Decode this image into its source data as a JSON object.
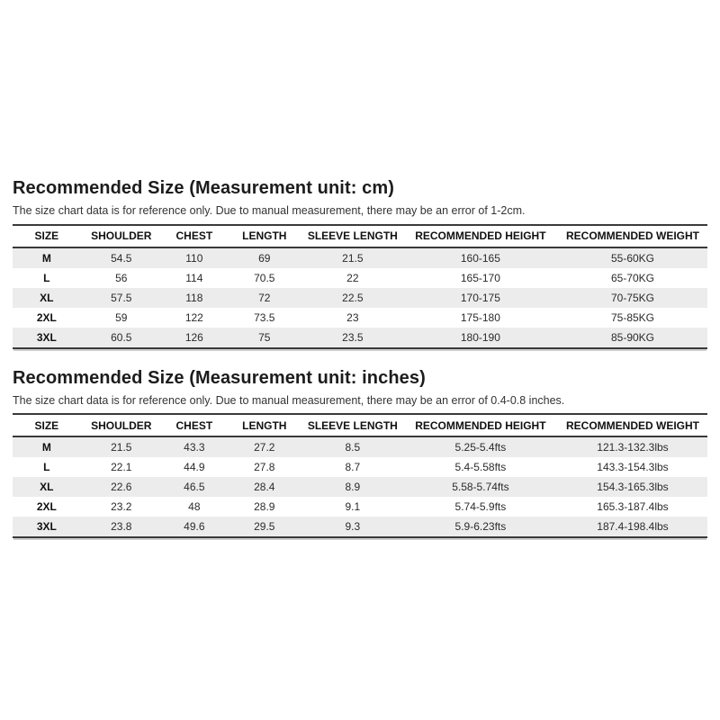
{
  "colors": {
    "background": "#ffffff",
    "stripe": "#ececec",
    "rule": "#3a3a3a",
    "text": "#222222"
  },
  "sections": [
    {
      "title": "Recommended Size (Measurement unit: cm)",
      "subtitle": "The size chart data is for reference only. Due to manual measurement, there may be an error of 1-2cm.",
      "table": {
        "headers": [
          "SIZE",
          "SHOULDER",
          "CHEST",
          "LENGTH",
          "SLEEVE LENGTH",
          "RECOMMENDED HEIGHT",
          "RECOMMENDED WEIGHT"
        ],
        "rows": [
          [
            "M",
            "54.5",
            "110",
            "69",
            "21.5",
            "160-165",
            "55-60KG"
          ],
          [
            "L",
            "56",
            "114",
            "70.5",
            "22",
            "165-170",
            "65-70KG"
          ],
          [
            "XL",
            "57.5",
            "118",
            "72",
            "22.5",
            "170-175",
            "70-75KG"
          ],
          [
            "2XL",
            "59",
            "122",
            "73.5",
            "23",
            "175-180",
            "75-85KG"
          ],
          [
            "3XL",
            "60.5",
            "126",
            "75",
            "23.5",
            "180-190",
            "85-90KG"
          ]
        ]
      }
    },
    {
      "title": "Recommended Size (Measurement unit: inches)",
      "subtitle": "The size chart data is for reference only. Due to manual measurement, there may be an error of 0.4-0.8 inches.",
      "table": {
        "headers": [
          "SIZE",
          "SHOULDER",
          "CHEST",
          "LENGTH",
          "SLEEVE LENGTH",
          "RECOMMENDED HEIGHT",
          "RECOMMENDED WEIGHT"
        ],
        "rows": [
          [
            "M",
            "21.5",
            "43.3",
            "27.2",
            "8.5",
            "5.25-5.4fts",
            "121.3-132.3lbs"
          ],
          [
            "L",
            "22.1",
            "44.9",
            "27.8",
            "8.7",
            "5.4-5.58fts",
            "143.3-154.3lbs"
          ],
          [
            "XL",
            "22.6",
            "46.5",
            "28.4",
            "8.9",
            "5.58-5.74fts",
            "154.3-165.3lbs"
          ],
          [
            "2XL",
            "23.2",
            "48",
            "28.9",
            "9.1",
            "5.74-5.9fts",
            "165.3-187.4lbs"
          ],
          [
            "3XL",
            "23.8",
            "49.6",
            "29.5",
            "9.3",
            "5.9-6.23fts",
            "187.4-198.4lbs"
          ]
        ]
      }
    }
  ]
}
